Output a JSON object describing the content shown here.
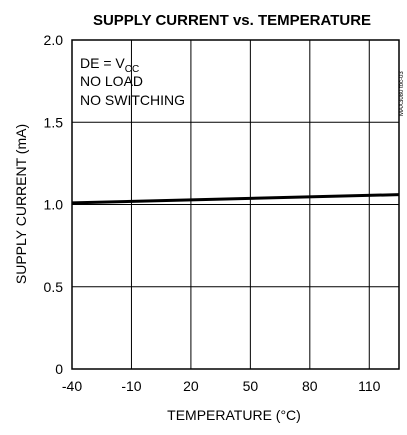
{
  "chart_data": {
    "type": "line",
    "title": "SUPPLY CURRENT vs. TEMPERATURE",
    "xlabel": "TEMPERATURE (°C)",
    "ylabel": "SUPPLY CURRENT (mA)",
    "xlim": [
      -40,
      125
    ],
    "ylim": [
      0,
      2.0
    ],
    "x_ticks": [
      "-40",
      "-10",
      "20",
      "50",
      "80",
      "110"
    ],
    "y_ticks": [
      "0",
      "0.5",
      "1.0",
      "1.5",
      "2.0"
    ],
    "grid": true,
    "annotations": {
      "de_prefix": "DE = V",
      "de_subscript": "CC",
      "line2": "NO LOAD",
      "line3": "NO SWITCHING"
    },
    "side_code": "MAX3080 toc-03",
    "series": [
      {
        "x": [
          -40,
          125
        ],
        "y": [
          1.01,
          1.06
        ]
      }
    ]
  }
}
